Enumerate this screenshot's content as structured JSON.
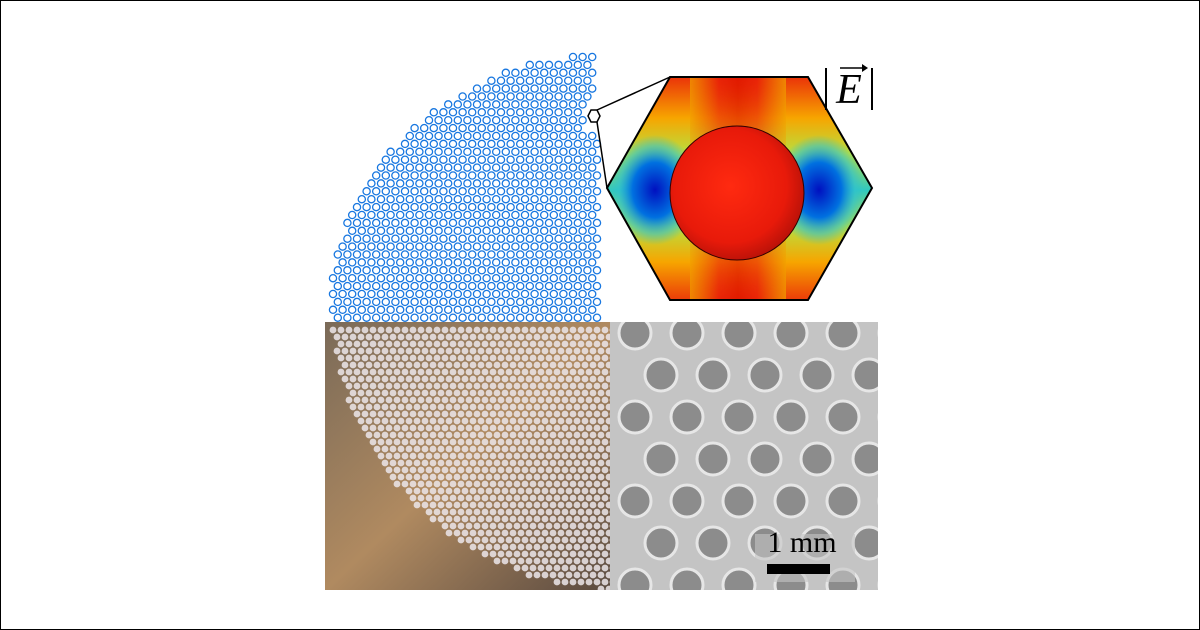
{
  "field_label": "E",
  "scale_bar": "1 mm"
}
